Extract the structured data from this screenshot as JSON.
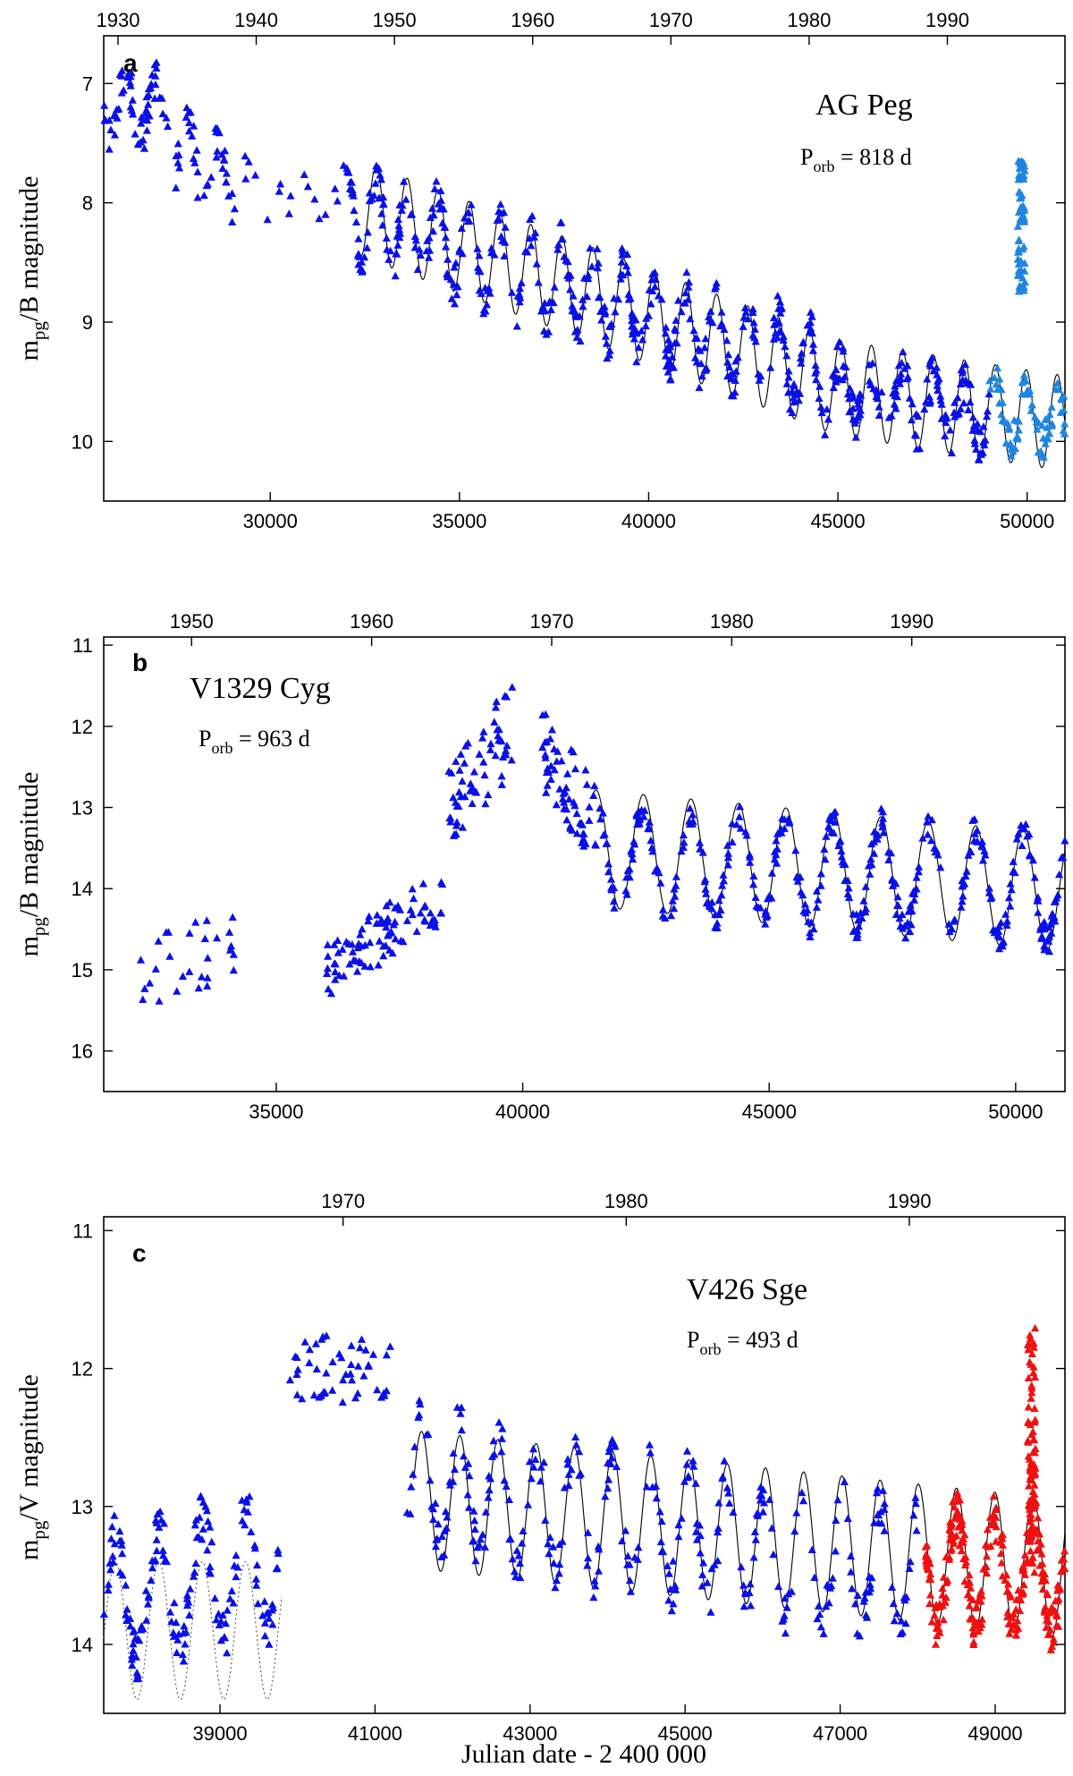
{
  "colors": {
    "observed_blue": "#0a10e8",
    "recent_light_blue": "#1f86e0",
    "recent_red": "#f01010",
    "model_line": "#000000"
  },
  "xlabel": "Julian date - 2 400 000",
  "chart_data": [
    {
      "type": "scatter",
      "panel_label": "a",
      "star": "AG Peg",
      "period_prefix": "P",
      "period_sub": "orb",
      "period_value": " = 818 d",
      "ylabel_main": "m",
      "ylabel_sub": "pg",
      "ylabel_rest": "/B magnitude",
      "xlim": [
        25600,
        51000
      ],
      "ylim": [
        10.5,
        6.6
      ],
      "x_ticks": [
        30000,
        35000,
        40000,
        45000,
        50000
      ],
      "x_tick_labels": [
        "30000",
        "35000",
        "40000",
        "45000",
        "50000"
      ],
      "y_ticks": [
        7,
        8,
        9,
        10
      ],
      "y_tick_labels": [
        "7",
        "8",
        "9",
        "10"
      ],
      "top_ticks": [
        1930,
        1940,
        1950,
        1960,
        1970,
        1980,
        1990
      ],
      "top_tick_labels": [
        "1930",
        "1940",
        "1950",
        "1960",
        "1970",
        "1980",
        "1990"
      ],
      "model": {
        "period": 818,
        "x_start": 32400,
        "x_end": 51000,
        "trend": [
          [
            32400,
            8.05
          ],
          [
            40000,
            8.95
          ],
          [
            45000,
            9.55
          ],
          [
            51000,
            9.85
          ]
        ],
        "amplitude": 0.4,
        "phase_x": 32800
      },
      "series": [
        {
          "color_key": "observed_blue",
          "segments": [
            {
              "x0": 25600,
              "x1": 27300,
              "y0": 7.15,
              "y1": 7.2,
              "amp": 0.25,
              "count": 60,
              "period": 818,
              "phase": 0
            },
            {
              "x0": 27300,
              "x1": 29500,
              "y0": 7.5,
              "y1": 7.9,
              "amp": 0.3,
              "count": 45,
              "period": 818,
              "phase": 0
            },
            {
              "x0": 29500,
              "x1": 32000,
              "y0": 7.85,
              "y1": 8.0,
              "amp": 0.15,
              "count": 14,
              "period": 818,
              "phase": 0
            },
            {
              "x0": 32000,
              "x1": 44800,
              "y0": 8.05,
              "y1": 9.45,
              "amp": 0.35,
              "count": 420,
              "period": 818,
              "phase": 32800
            },
            {
              "x0": 44800,
              "x1": 49000,
              "y0": 9.55,
              "y1": 9.8,
              "amp": 0.25,
              "count": 150,
              "period": 818,
              "phase": 32800
            }
          ]
        },
        {
          "color_key": "recent_light_blue",
          "segments": [
            {
              "x0": 49000,
              "x1": 51000,
              "y0": 9.75,
              "y1": 9.85,
              "amp": 0.22,
              "count": 80,
              "period": 818,
              "phase": 32800
            },
            {
              "x0": 49750,
              "x1": 49950,
              "y0": 8.2,
              "y1": 8.2,
              "amp": 0.55,
              "count": 70,
              "period": 0,
              "phase": 0
            }
          ]
        }
      ]
    },
    {
      "type": "scatter",
      "panel_label": "b",
      "star": "V1329 Cyg",
      "period_prefix": "P",
      "period_sub": "orb",
      "period_value": " = 963 d",
      "ylabel_main": "m",
      "ylabel_sub": "pg",
      "ylabel_rest": "/B magnitude",
      "xlim": [
        31500,
        51000
      ],
      "ylim": [
        16.5,
        10.9
      ],
      "x_ticks": [
        35000,
        40000,
        45000,
        50000
      ],
      "x_tick_labels": [
        "35000",
        "40000",
        "45000",
        "50000"
      ],
      "y_ticks": [
        11,
        12,
        13,
        14,
        15,
        16
      ],
      "y_tick_labels": [
        "11",
        "12",
        "13",
        "14",
        "15",
        "16"
      ],
      "top_ticks": [
        1950,
        1960,
        1970,
        1980,
        1990
      ],
      "top_tick_labels": [
        "1950",
        "1960",
        "1970",
        "1980",
        "1990"
      ],
      "model": {
        "period": 963,
        "x_start": 41400,
        "x_end": 51000,
        "trend": [
          [
            41400,
            13.5
          ],
          [
            51000,
            14.05
          ]
        ],
        "amplitude": 0.72,
        "phase_x": 42450
      },
      "series": [
        {
          "color_key": "observed_blue",
          "segments": [
            {
              "x0": 32000,
              "x1": 34200,
              "y0": 15.1,
              "y1": 14.7,
              "amp": 0.45,
              "count": 30,
              "period": 0,
              "phase": 0
            },
            {
              "x0": 36000,
              "x1": 38400,
              "y0": 15.0,
              "y1": 14.1,
              "amp": 0.35,
              "count": 90,
              "period": 0,
              "phase": 0
            },
            {
              "x0": 38500,
              "x1": 39800,
              "y0": 13.0,
              "y1": 12.0,
              "amp": 0.6,
              "count": 60,
              "period": 0,
              "phase": 0
            },
            {
              "x0": 40400,
              "x1": 41500,
              "y0": 12.3,
              "y1": 13.2,
              "amp": 0.5,
              "count": 60,
              "period": 0,
              "phase": 0
            },
            {
              "x0": 41500,
              "x1": 51000,
              "y0": 13.6,
              "y1": 14.0,
              "amp": 0.65,
              "count": 380,
              "period": 963,
              "phase": 42450
            }
          ]
        }
      ]
    },
    {
      "type": "scatter",
      "panel_label": "c",
      "star": "V426 Sge",
      "period_prefix": "P",
      "period_sub": "orb",
      "period_value": " = 493 d",
      "ylabel_main": "m",
      "ylabel_sub": "pg",
      "ylabel_rest": "/V  magnitude",
      "xlim": [
        37500,
        49900
      ],
      "ylim": [
        14.5,
        10.9
      ],
      "x_ticks": [
        39000,
        41000,
        43000,
        45000,
        47000,
        49000
      ],
      "x_tick_labels": [
        "39000",
        "41000",
        "43000",
        "45000",
        "47000",
        "49000"
      ],
      "y_ticks": [
        11,
        12,
        13,
        14
      ],
      "y_tick_labels": [
        "11",
        "12",
        "13",
        "14"
      ],
      "top_ticks": [
        1970,
        1980,
        1990
      ],
      "top_tick_labels": [
        "1970",
        "1980",
        "1990"
      ],
      "model": {
        "period": 493,
        "x_start": 41500,
        "x_end": 49900,
        "trend": [
          [
            41500,
            12.95
          ],
          [
            49900,
            13.45
          ]
        ],
        "amplitude": 0.5,
        "phase_x": 41600
      },
      "model_dotted": {
        "period": 560,
        "x_start": 37500,
        "x_end": 39800,
        "trend": [
          [
            37500,
            13.9
          ],
          [
            39800,
            13.9
          ]
        ],
        "amplitude": 0.5,
        "phase_x": 37650
      },
      "series": [
        {
          "color_key": "observed_blue",
          "segments": [
            {
              "x0": 37500,
              "x1": 39800,
              "y0": 13.7,
              "y1": 13.4,
              "amp": 0.45,
              "count": 160,
              "period": 560,
              "phase": 37650
            },
            {
              "x0": 39900,
              "x1": 41200,
              "y0": 12.0,
              "y1": 12.0,
              "amp": 0.25,
              "count": 50,
              "period": 0,
              "phase": 0
            },
            {
              "x0": 41400,
              "x1": 48000,
              "y0": 12.8,
              "y1": 13.5,
              "amp": 0.45,
              "count": 300,
              "period": 493,
              "phase": 41600
            }
          ]
        },
        {
          "color_key": "recent_red",
          "segments": [
            {
              "x0": 48100,
              "x1": 49900,
              "y0": 13.45,
              "y1": 13.5,
              "amp": 0.4,
              "count": 260,
              "period": 493,
              "phase": 41600
            },
            {
              "x0": 49420,
              "x1": 49520,
              "y0": 12.6,
              "y1": 12.6,
              "amp": 0.9,
              "count": 80,
              "period": 0,
              "phase": 0
            }
          ]
        }
      ]
    }
  ]
}
